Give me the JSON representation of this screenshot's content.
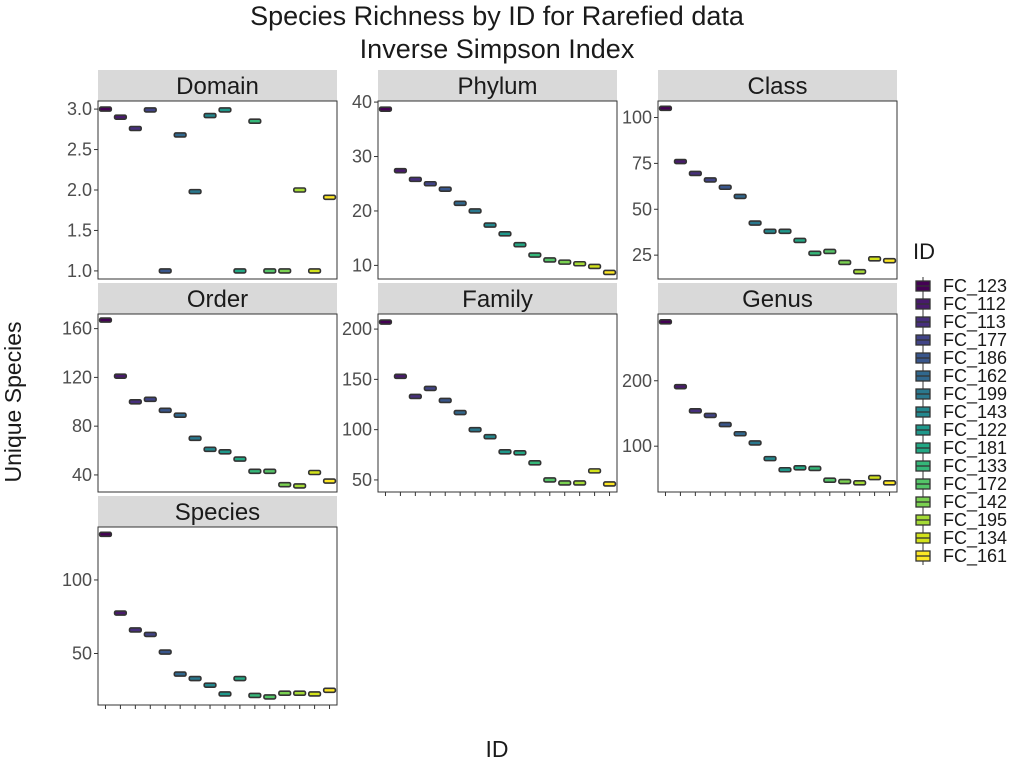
{
  "chart_data": {
    "type": "boxplot",
    "title": "Species Richness by ID for Rarefied data",
    "subtitle": "Inverse Simpson Index",
    "xlabel": "ID",
    "ylabel": "Unique Species",
    "legend": {
      "title": "ID",
      "position": "right",
      "entries": [
        {
          "name": "FC_123",
          "color": "#440154"
        },
        {
          "name": "FC_112",
          "color": "#481a6c"
        },
        {
          "name": "FC_113",
          "color": "#472f7d"
        },
        {
          "name": "FC_177",
          "color": "#414487"
        },
        {
          "name": "FC_186",
          "color": "#39568c"
        },
        {
          "name": "FC_162",
          "color": "#31688e"
        },
        {
          "name": "FC_199",
          "color": "#2a788e"
        },
        {
          "name": "FC_143",
          "color": "#23888e"
        },
        {
          "name": "FC_122",
          "color": "#1f988b"
        },
        {
          "name": "FC_181",
          "color": "#22a884"
        },
        {
          "name": "FC_133",
          "color": "#35b779"
        },
        {
          "name": "FC_172",
          "color": "#54c568"
        },
        {
          "name": "FC_142",
          "color": "#7ad151"
        },
        {
          "name": "FC_195",
          "color": "#a5db36"
        },
        {
          "name": "FC_134",
          "color": "#d2e21b"
        },
        {
          "name": "FC_161",
          "color": "#fde725"
        }
      ]
    },
    "panels": [
      {
        "name": "Domain",
        "ylim": [
          0.9,
          3.1
        ],
        "yticks": [
          1.0,
          1.5,
          2.0,
          2.5,
          3.0
        ],
        "tick_labels": [
          "1.0",
          "1.5",
          "2.0",
          "2.5",
          "3.0"
        ],
        "values": [
          3.0,
          2.9,
          2.76,
          2.99,
          1.0,
          2.68,
          1.98,
          2.92,
          2.99,
          1.0,
          2.85,
          1.0,
          1.0,
          2.0,
          1.0,
          1.91
        ]
      },
      {
        "name": "Phylum",
        "ylim": [
          7.5,
          40.2
        ],
        "yticks": [
          10,
          20,
          30,
          40
        ],
        "tick_labels": [
          "10",
          "20",
          "30",
          "40"
        ],
        "values": [
          38.7,
          27.4,
          25.8,
          25.0,
          24.0,
          21.4,
          20.0,
          17.4,
          15.8,
          13.8,
          11.9,
          11.0,
          10.6,
          10.3,
          9.8,
          8.7
        ]
      },
      {
        "name": "Class",
        "ylim": [
          12,
          109
        ],
        "yticks": [
          25,
          50,
          75,
          100
        ],
        "tick_labels": [
          "25",
          "50",
          "75",
          "100"
        ],
        "values": [
          105,
          76,
          69.5,
          66,
          62,
          57,
          42.5,
          38,
          38,
          33,
          26,
          27,
          21,
          16,
          23,
          22
        ]
      },
      {
        "name": "Order",
        "ylim": [
          26,
          172
        ],
        "yticks": [
          40,
          80,
          120,
          160
        ],
        "tick_labels": [
          "40",
          "80",
          "120",
          "160"
        ],
        "values": [
          167,
          121,
          100,
          102,
          93,
          89,
          70,
          61,
          59,
          53,
          43,
          43,
          32,
          31,
          42,
          35
        ]
      },
      {
        "name": "Family",
        "ylim": [
          38,
          215
        ],
        "yticks": [
          50,
          100,
          150,
          200
        ],
        "tick_labels": [
          "50",
          "100",
          "150",
          "200"
        ],
        "values": [
          207,
          153,
          133,
          141,
          129,
          117,
          100,
          93,
          78,
          77,
          67,
          50,
          47,
          47,
          59,
          46
        ]
      },
      {
        "name": "Genus",
        "ylim": [
          30,
          302
        ],
        "yticks": [
          100,
          200
        ],
        "tick_labels": [
          "100",
          "200"
        ],
        "values": [
          290,
          191,
          154,
          147,
          133,
          119,
          105,
          81,
          64,
          67,
          66,
          48,
          46,
          44,
          52,
          44
        ]
      },
      {
        "name": "Species",
        "ylim": [
          15,
          136
        ],
        "yticks": [
          50,
          100
        ],
        "tick_labels": [
          "50",
          "100"
        ],
        "values": [
          131,
          77.5,
          66,
          63,
          51,
          36,
          33,
          28.5,
          22.5,
          33,
          21.5,
          20.5,
          23,
          23,
          22.5,
          25
        ]
      }
    ]
  }
}
